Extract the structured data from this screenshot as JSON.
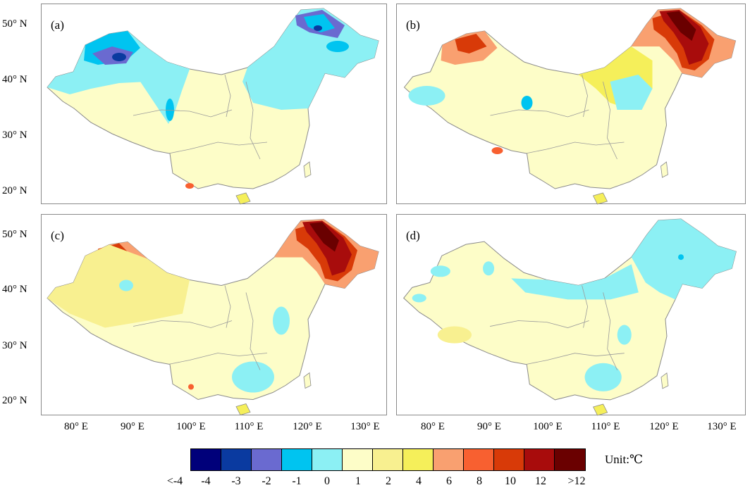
{
  "panels": [
    {
      "id": "a",
      "label": "(a)"
    },
    {
      "id": "b",
      "label": "(b)"
    },
    {
      "id": "c",
      "label": "(c)"
    },
    {
      "id": "d",
      "label": "(d)"
    }
  ],
  "lat_labels": [
    "50° N",
    "40° N",
    "30° N",
    "20° N"
  ],
  "lon_labels": [
    "80° E",
    "90° E",
    "100° E",
    "110° E",
    "120° E",
    "130° E"
  ],
  "legend": {
    "unit": "Unit:℃",
    "colors": [
      "#00007a",
      "#0a3aa0",
      "#6a6ad0",
      "#00c4f0",
      "#8cf0f4",
      "#fdfdc8",
      "#f8f090",
      "#f5ef5a",
      "#f9a070",
      "#f86030",
      "#d83a08",
      "#a80c0c",
      "#6a0000"
    ],
    "ticks": [
      "<-4",
      "-4",
      "-3",
      "-2",
      "-1",
      "0",
      "1",
      "2",
      "4",
      "6",
      "8",
      "10",
      "12",
      ">12"
    ]
  }
}
